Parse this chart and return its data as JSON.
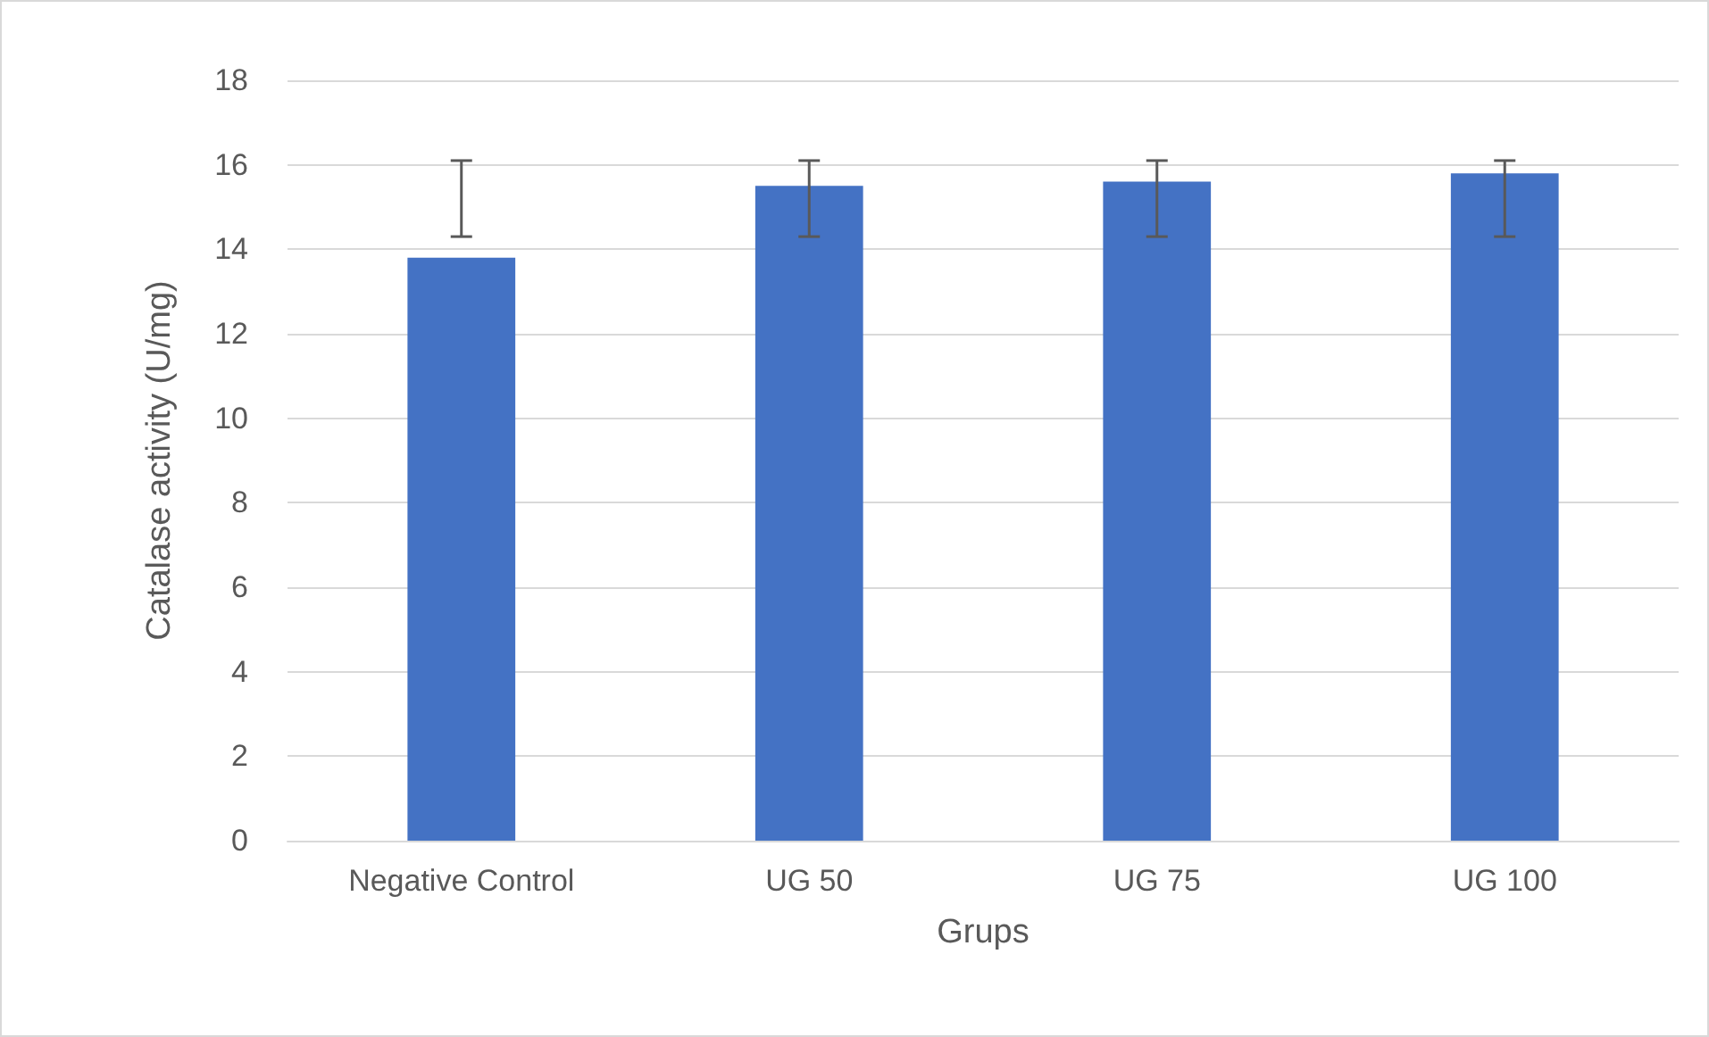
{
  "chart_data": {
    "type": "bar",
    "xlabel": "Grups",
    "ylabel": "Catalase activity (U/mg)",
    "categories": [
      "Negative Control",
      "UG 50",
      "UG 75",
      "UG 100"
    ],
    "values": [
      13.8,
      15.5,
      15.6,
      15.8
    ],
    "errors": [
      [
        14.3,
        16.1
      ],
      [
        14.3,
        16.1
      ],
      [
        14.3,
        16.1
      ],
      [
        14.3,
        16.1
      ]
    ],
    "color": "#4472c4",
    "ylim": [
      0,
      18
    ],
    "yticks": [
      0,
      2,
      4,
      6,
      8,
      10,
      12,
      14,
      16,
      18
    ],
    "grid": "y"
  }
}
